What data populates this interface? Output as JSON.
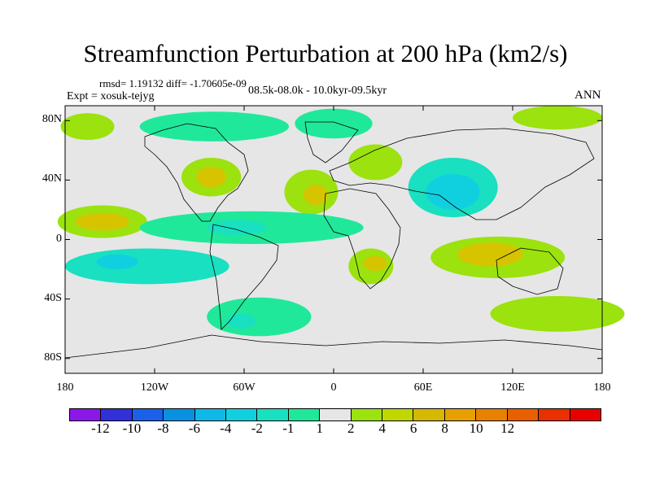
{
  "title": "Streamfunction Perturbation at 200 hPa (km2/s)",
  "stats_text": "rmsd= 1.19132 diff= -1.70605e-09",
  "experiment_text": "Expt = xosuk-tejyg",
  "period_text": "08.5k-08.0k - 10.0kyr-09.5kyr",
  "season_text": "ANN",
  "map": {
    "projection": "cylindrical-equidistant",
    "lon_range": [
      -180,
      180
    ],
    "lat_range": [
      -90,
      90
    ],
    "y_ticks": [
      {
        "lat": 80,
        "label": "80N"
      },
      {
        "lat": 40,
        "label": "40N"
      },
      {
        "lat": 0,
        "label": "0"
      },
      {
        "lat": -40,
        "label": "40S"
      },
      {
        "lat": -80,
        "label": "80S"
      }
    ],
    "x_ticks": [
      {
        "lon": -180,
        "label": "180"
      },
      {
        "lon": -120,
        "label": "120W"
      },
      {
        "lon": -60,
        "label": "60W"
      },
      {
        "lon": 0,
        "label": "0"
      },
      {
        "lon": 60,
        "label": "60E"
      },
      {
        "lon": 120,
        "label": "120E"
      },
      {
        "lon": 180,
        "label": "180"
      }
    ],
    "background_color": "#e6e6e6",
    "anomaly_regions": [
      {
        "name": "north-pacific-positive",
        "lon": -165,
        "lat": 76,
        "rlon": 18,
        "rlat": 9,
        "level": 2
      },
      {
        "name": "arctic-canada-negative",
        "lon": -80,
        "lat": 76,
        "rlon": 50,
        "rlat": 10,
        "level": -1
      },
      {
        "name": "greenland-negative",
        "lon": 0,
        "lat": 78,
        "rlon": 26,
        "rlat": 10,
        "level": -1
      },
      {
        "name": "north-atlantic-dipole-positive",
        "lon": 28,
        "lat": 52,
        "rlon": 18,
        "rlat": 12,
        "level": 2
      },
      {
        "name": "ne-pacific-positive",
        "lon": 150,
        "lat": 82,
        "rlon": 30,
        "rlat": 8,
        "level": 2
      },
      {
        "name": "eastern-us-positive",
        "lon": -82,
        "lat": 42,
        "rlon": 20,
        "rlat": 13,
        "level": 2
      },
      {
        "name": "eastern-us-core",
        "lon": -82,
        "lat": 42,
        "rlon": 10,
        "rlat": 7,
        "level": 4
      },
      {
        "name": "central-asia-negative",
        "lon": 80,
        "lat": 35,
        "rlon": 30,
        "rlat": 20,
        "level": -2
      },
      {
        "name": "central-asia-core",
        "lon": 80,
        "lat": 32,
        "rlon": 18,
        "rlat": 12,
        "level": -4
      },
      {
        "name": "north-africa-positive",
        "lon": -15,
        "lat": 32,
        "rlon": 18,
        "rlat": 15,
        "level": 2
      },
      {
        "name": "north-africa-core",
        "lon": -12,
        "lat": 30,
        "rlon": 8,
        "rlat": 7,
        "level": 4
      },
      {
        "name": "tropical-pacific-positive",
        "lon": -155,
        "lat": 12,
        "rlon": 30,
        "rlat": 11,
        "level": 2
      },
      {
        "name": "tropical-pacific-core",
        "lon": -155,
        "lat": 12,
        "rlon": 18,
        "rlat": 6,
        "level": 4
      },
      {
        "name": "tropical-atlantic-negative",
        "lon": -55,
        "lat": 8,
        "rlon": 75,
        "rlat": 11,
        "level": -1
      },
      {
        "name": "tropical-atlantic-core",
        "lon": -65,
        "lat": 8,
        "rlon": 20,
        "rlat": 5,
        "level": -2
      },
      {
        "name": "south-pacific-negative",
        "lon": -125,
        "lat": -18,
        "rlon": 55,
        "rlat": 12,
        "level": -2
      },
      {
        "name": "south-pacific-core",
        "lon": -145,
        "lat": -15,
        "rlon": 14,
        "rlat": 5,
        "level": -4
      },
      {
        "name": "south-america-negative",
        "lon": -50,
        "lat": -52,
        "rlon": 35,
        "rlat": 13,
        "level": -1
      },
      {
        "name": "south-america-core",
        "lon": -62,
        "lat": -55,
        "rlon": 10,
        "rlat": 5,
        "level": -2
      },
      {
        "name": "southern-africa-positive",
        "lon": 25,
        "lat": -18,
        "rlon": 15,
        "rlat": 12,
        "level": 2
      },
      {
        "name": "southern-africa-core",
        "lon": 28,
        "lat": -16,
        "rlon": 8,
        "rlat": 5,
        "level": 4
      },
      {
        "name": "australia-positive",
        "lon": 110,
        "lat": -12,
        "rlon": 45,
        "rlat": 14,
        "level": 2
      },
      {
        "name": "australia-core",
        "lon": 105,
        "lat": -10,
        "rlon": 22,
        "rlat": 8,
        "level": 4
      },
      {
        "name": "southern-ocean-positive",
        "lon": 150,
        "lat": -50,
        "rlon": 45,
        "rlat": 12,
        "level": 2
      }
    ],
    "level_colors": {
      "-4": "#10d0e0",
      "-2": "#18e0c0",
      "-1": "#20e89a",
      "2": "#9ce20f",
      "4": "#d6c400"
    }
  },
  "colorbar": {
    "colors": [
      "#8c18e8",
      "#3230d8",
      "#1a60e8",
      "#0a90e0",
      "#10b8e8",
      "#10d0e0",
      "#18e0c0",
      "#20e89a",
      "#e6e6e6",
      "#9ce20f",
      "#c0d800",
      "#d6b800",
      "#e8a000",
      "#e88000",
      "#e86000",
      "#e83000",
      "#e80000"
    ],
    "labels": [
      "-12",
      "-10",
      "-8",
      "-6",
      "-4",
      "-2",
      "-1",
      "1",
      "2",
      "4",
      "6",
      "8",
      "10",
      "12"
    ]
  }
}
